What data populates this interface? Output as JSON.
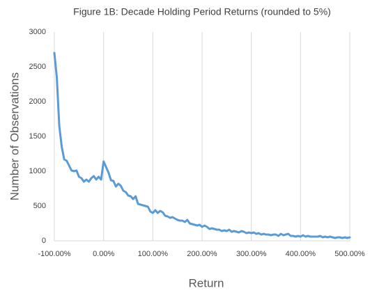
{
  "chart_data": {
    "type": "line",
    "title": "Figure 1B: Decade Holding Period Returns (rounded to 5%)",
    "x_label": "Return",
    "y_label": "Number of Observations",
    "x": [
      -100,
      -95,
      -90,
      -85,
      -80,
      -75,
      -70,
      -65,
      -60,
      -55,
      -50,
      -45,
      -40,
      -35,
      -30,
      -25,
      -20,
      -15,
      -10,
      -5,
      0,
      5,
      10,
      15,
      20,
      25,
      30,
      35,
      40,
      45,
      50,
      55,
      60,
      65,
      70,
      75,
      80,
      85,
      90,
      95,
      100,
      105,
      110,
      115,
      120,
      125,
      130,
      135,
      140,
      145,
      150,
      155,
      160,
      165,
      170,
      175,
      180,
      185,
      190,
      195,
      200,
      205,
      210,
      215,
      220,
      225,
      230,
      235,
      240,
      245,
      250,
      255,
      260,
      265,
      270,
      275,
      280,
      285,
      290,
      295,
      300,
      305,
      310,
      315,
      320,
      325,
      330,
      335,
      340,
      345,
      350,
      355,
      360,
      365,
      370,
      375,
      380,
      385,
      390,
      395,
      400,
      405,
      410,
      415,
      420,
      425,
      430,
      435,
      440,
      445,
      450,
      455,
      460,
      465,
      470,
      475,
      480,
      485,
      490,
      495,
      500
    ],
    "series": [
      {
        "name": "Observations",
        "color": "#5b9bd5",
        "values": [
          2700,
          2350,
          1650,
          1350,
          1170,
          1150,
          1080,
          1010,
          1000,
          1010,
          920,
          900,
          850,
          880,
          850,
          900,
          930,
          880,
          920,
          880,
          1140,
          1060,
          980,
          870,
          860,
          780,
          820,
          790,
          720,
          700,
          650,
          640,
          600,
          640,
          530,
          520,
          510,
          500,
          490,
          420,
          400,
          440,
          400,
          430,
          410,
          360,
          350,
          330,
          340,
          320,
          300,
          290,
          290,
          270,
          300,
          250,
          240,
          230,
          220,
          230,
          200,
          220,
          200,
          170,
          180,
          170,
          160,
          160,
          140,
          150,
          140,
          160,
          130,
          140,
          130,
          120,
          140,
          130,
          110,
          120,
          110,
          120,
          100,
          110,
          90,
          100,
          90,
          90,
          80,
          90,
          90,
          70,
          100,
          80,
          90,
          100,
          70,
          70,
          60,
          70,
          60,
          80,
          60,
          70,
          60,
          60,
          60,
          60,
          70,
          50,
          60,
          50,
          60,
          50,
          40,
          50,
          50,
          40,
          50,
          40,
          50
        ]
      }
    ],
    "xlim": [
      -100,
      500
    ],
    "xticks": [
      {
        "value": -100,
        "label": "-100.00%"
      },
      {
        "value": 0,
        "label": "0.00%"
      },
      {
        "value": 100,
        "label": "100.00%"
      },
      {
        "value": 200,
        "label": "200.00%"
      },
      {
        "value": 300,
        "label": "300.00%"
      },
      {
        "value": 400,
        "label": "400.00%"
      },
      {
        "value": 500,
        "label": "500.00%"
      }
    ],
    "ylim": [
      0,
      3000
    ],
    "yticks": [
      0,
      500,
      1000,
      1500,
      2000,
      2500,
      3000
    ],
    "grid": "x"
  }
}
